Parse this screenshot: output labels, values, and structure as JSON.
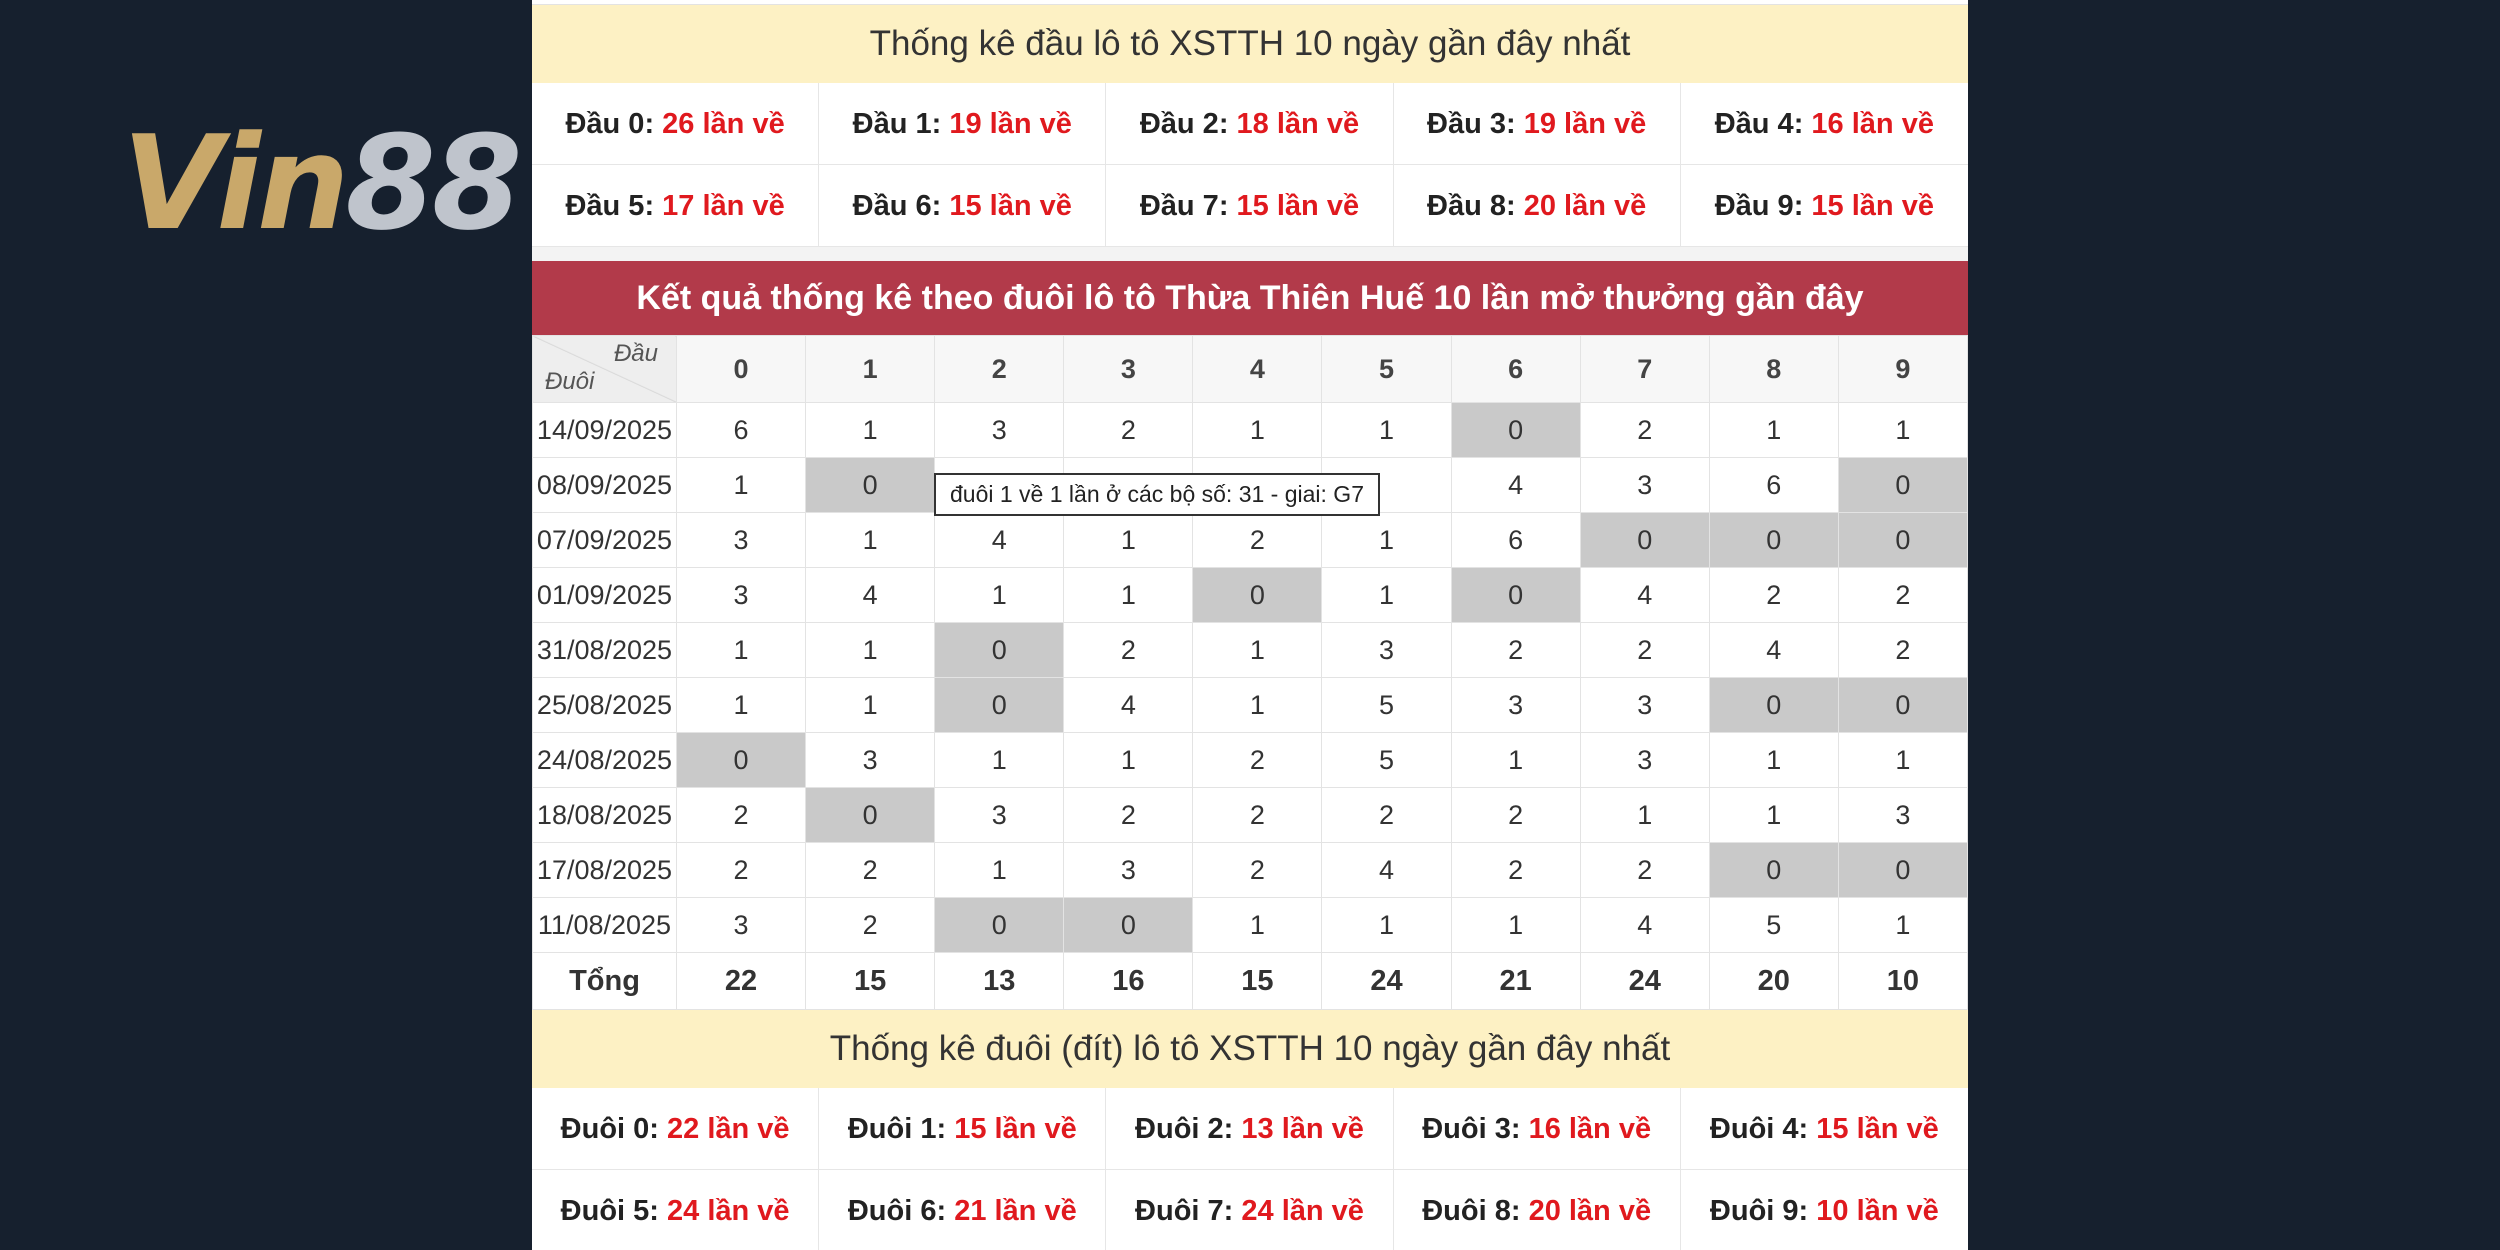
{
  "brand": {
    "logo_vin": "Vin",
    "logo_num": "88"
  },
  "dau_section": {
    "title": "Thống kê đầu lô tô XSTTH 10 ngày gần đây nhất",
    "items": [
      {
        "label": "Đầu 0:",
        "value": "26 lần về"
      },
      {
        "label": "Đầu 1:",
        "value": "19 lần về"
      },
      {
        "label": "Đầu 2:",
        "value": "18 lần về"
      },
      {
        "label": "Đầu 3:",
        "value": "19 lần về"
      },
      {
        "label": "Đầu 4:",
        "value": "16 lần về"
      },
      {
        "label": "Đầu 5:",
        "value": "17 lần về"
      },
      {
        "label": "Đầu 6:",
        "value": "15 lần về"
      },
      {
        "label": "Đầu 7:",
        "value": "15 lần về"
      },
      {
        "label": "Đầu 8:",
        "value": "20 lần về"
      },
      {
        "label": "Đầu 9:",
        "value": "15 lần về"
      }
    ]
  },
  "duoi_table": {
    "title": "Kết quả thống kê theo đuôi lô tô Thừa Thiên Huế 10 lần mở thưởng gần đây",
    "corner_top": "Đầu",
    "corner_bottom": "Đuôi",
    "columns": [
      "0",
      "1",
      "2",
      "3",
      "4",
      "5",
      "6",
      "7",
      "8",
      "9"
    ],
    "rows": [
      {
        "date": "14/09/2025",
        "values": [
          "6",
          "1",
          "3",
          "2",
          "1",
          "1",
          "0",
          "2",
          "1",
          "1"
        ]
      },
      {
        "date": "08/09/2025",
        "values": [
          "1",
          "0",
          "",
          "",
          "",
          "",
          "4",
          "3",
          "6",
          "0"
        ]
      },
      {
        "date": "07/09/2025",
        "values": [
          "3",
          "1",
          "4",
          "1",
          "2",
          "1",
          "6",
          "0",
          "0",
          "0"
        ]
      },
      {
        "date": "01/09/2025",
        "values": [
          "3",
          "4",
          "1",
          "1",
          "0",
          "1",
          "0",
          "4",
          "2",
          "2"
        ]
      },
      {
        "date": "31/08/2025",
        "values": [
          "1",
          "1",
          "0",
          "2",
          "1",
          "3",
          "2",
          "2",
          "4",
          "2"
        ]
      },
      {
        "date": "25/08/2025",
        "values": [
          "1",
          "1",
          "0",
          "4",
          "1",
          "5",
          "3",
          "3",
          "0",
          "0"
        ]
      },
      {
        "date": "24/08/2025",
        "values": [
          "0",
          "3",
          "1",
          "1",
          "2",
          "5",
          "1",
          "3",
          "1",
          "1"
        ]
      },
      {
        "date": "18/08/2025",
        "values": [
          "2",
          "0",
          "3",
          "2",
          "2",
          "2",
          "2",
          "1",
          "1",
          "3"
        ]
      },
      {
        "date": "17/08/2025",
        "values": [
          "2",
          "2",
          "1",
          "3",
          "2",
          "4",
          "2",
          "2",
          "0",
          "0"
        ]
      },
      {
        "date": "11/08/2025",
        "values": [
          "3",
          "2",
          "0",
          "0",
          "1",
          "1",
          "1",
          "4",
          "5",
          "1"
        ]
      }
    ],
    "total_label": "Tổng",
    "totals": [
      "22",
      "15",
      "13",
      "16",
      "15",
      "24",
      "21",
      "24",
      "20",
      "10"
    ],
    "tooltip": "đuôi 1 về 1 lần ở các bộ số: 31 - giai: G7",
    "colors": {
      "header_bg": "#b23a4a",
      "zero_bg": "#c9c9c9",
      "count_red": "#e0191e"
    }
  },
  "duoi_section": {
    "title": "Thống kê đuôi (đít) lô tô XSTTH 10 ngày gần đây nhất",
    "items": [
      {
        "label": "Đuôi 0:",
        "value": "22 lần về"
      },
      {
        "label": "Đuôi 1:",
        "value": "15 lần về"
      },
      {
        "label": "Đuôi 2:",
        "value": "13 lần về"
      },
      {
        "label": "Đuôi 3:",
        "value": "16 lần về"
      },
      {
        "label": "Đuôi 4:",
        "value": "15 lần về"
      },
      {
        "label": "Đuôi 5:",
        "value": "24 lần về"
      },
      {
        "label": "Đuôi 6:",
        "value": "21 lần về"
      },
      {
        "label": "Đuôi 7:",
        "value": "24 lần về"
      },
      {
        "label": "Đuôi 8:",
        "value": "20 lần về"
      },
      {
        "label": "Đuôi 9:",
        "value": "10 lần về"
      }
    ]
  }
}
